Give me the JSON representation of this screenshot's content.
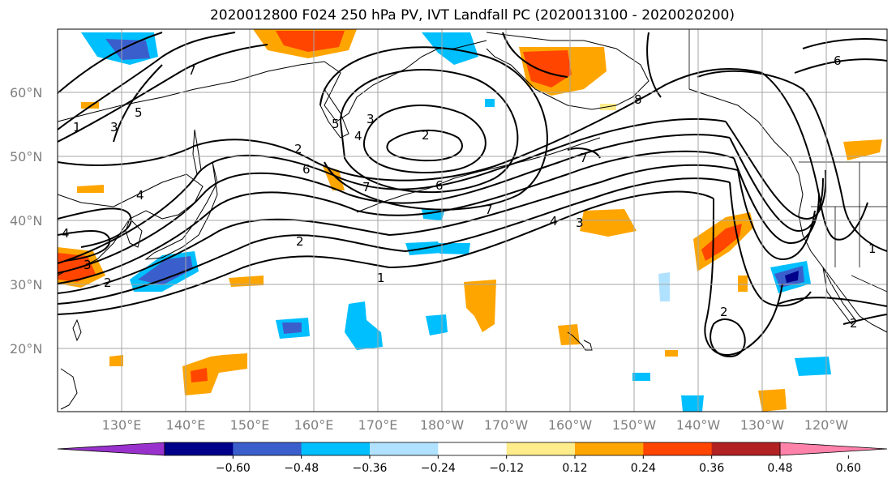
{
  "title": "2020012800 F024 250 hPa PV, IVT Landfall PC (2020013100 - 2020020200)",
  "latitude_labels": [
    "60°N",
    "50°N",
    "40°N",
    "30°N",
    "20°N"
  ],
  "longitude_labels": [
    "130°E",
    "140°E",
    "150°E",
    "160°E",
    "170°E",
    "180°W",
    "170°W",
    "160°W",
    "150°W",
    "140°W",
    "130°W",
    "120°W"
  ],
  "contour_labels": [
    "1",
    "2",
    "3",
    "4",
    "5",
    "6",
    "7",
    "1",
    "2",
    "3",
    "4",
    "6",
    "7",
    "4",
    "3",
    "2",
    "1",
    "7",
    "8",
    "6",
    "2",
    "2",
    "7",
    "2",
    "3",
    "4",
    "5"
  ],
  "colorbar": {
    "colors": [
      "#9932cc",
      "#00008b",
      "#3a5fcd",
      "#00bfff",
      "#b0e2ff",
      "#ffffff",
      "#ffec8b",
      "#ffa500",
      "#ff4500",
      "#b22222",
      "#ff82ab"
    ],
    "tick_labels": [
      "−0.60",
      "−0.48",
      "−0.36",
      "−0.24",
      "−0.12",
      "0.12",
      "0.24",
      "0.36",
      "0.48",
      "0.60"
    ],
    "extend": "both"
  }
}
